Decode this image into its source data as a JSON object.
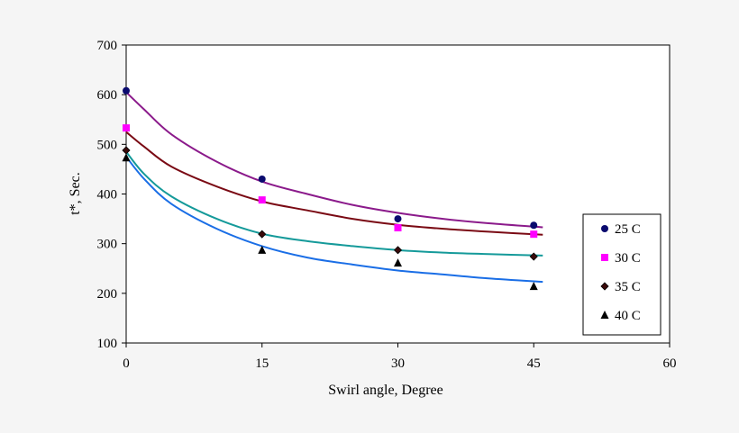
{
  "chart_data": {
    "type": "scatter",
    "title": "",
    "xlabel": "Swirl angle, Degree",
    "ylabel": "t*, Sec.",
    "xlim": [
      0,
      60
    ],
    "ylim": [
      100,
      700
    ],
    "xticks": [
      "0",
      "15",
      "30",
      "45",
      "60"
    ],
    "yticks": [
      "100",
      "200",
      "300",
      "400",
      "500",
      "600",
      "700"
    ],
    "grid": false,
    "legend_position": "right",
    "series": [
      {
        "name": "25 C",
        "marker": "circle",
        "marker_color": "#0a0a6e",
        "line_color": "#8b1a8b",
        "x": [
          0,
          15,
          30,
          45
        ],
        "y": [
          608,
          430,
          350,
          337
        ],
        "fit_x": [
          0,
          2,
          5,
          10,
          15,
          20,
          25,
          30,
          35,
          40,
          46
        ],
        "fit_y": [
          605,
          570,
          520,
          465,
          425,
          400,
          378,
          362,
          350,
          341,
          333
        ]
      },
      {
        "name": "30 C",
        "marker": "square",
        "marker_color": "#ff00ff",
        "line_color": "#7a0a14",
        "x": [
          0,
          15,
          30,
          45
        ],
        "y": [
          533,
          388,
          332,
          319
        ],
        "fit_x": [
          0,
          2,
          5,
          10,
          15,
          20,
          25,
          30,
          35,
          40,
          46
        ],
        "fit_y": [
          525,
          495,
          455,
          415,
          385,
          367,
          350,
          338,
          330,
          324,
          318
        ]
      },
      {
        "name": "35 C",
        "marker": "diamond",
        "marker_color": "#3a0a0a",
        "line_color": "#159a9a",
        "x": [
          0,
          15,
          30,
          45
        ],
        "y": [
          488,
          319,
          287,
          274
        ],
        "fit_x": [
          0,
          2,
          5,
          10,
          15,
          20,
          25,
          30,
          35,
          40,
          46
        ],
        "fit_y": [
          485,
          440,
          395,
          350,
          320,
          305,
          295,
          287,
          282,
          279,
          276
        ]
      },
      {
        "name": "40 C",
        "marker": "triangle",
        "marker_color": "#000000",
        "line_color": "#1a6ee6",
        "x": [
          0,
          15,
          30,
          45
        ],
        "y": [
          473,
          287,
          261,
          214
        ],
        "fit_x": [
          0,
          2,
          5,
          10,
          15,
          20,
          25,
          30,
          35,
          40,
          46
        ],
        "fit_y": [
          475,
          430,
          380,
          330,
          295,
          272,
          258,
          246,
          238,
          230,
          223
        ]
      }
    ]
  }
}
